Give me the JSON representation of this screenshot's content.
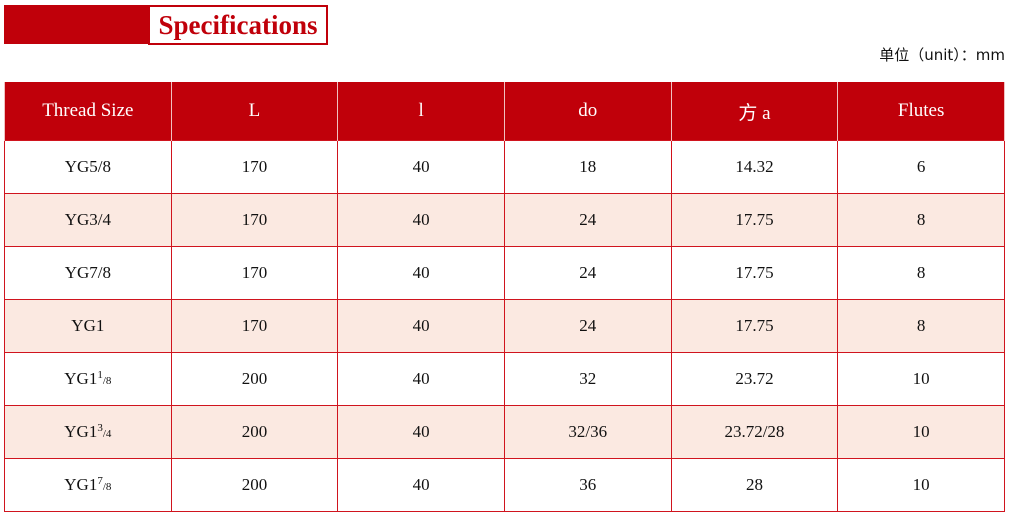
{
  "title": "Specifications",
  "unit": "单位（unit）：mm",
  "colors": {
    "accent": "#c0000a",
    "row_alt": "#fbe9e1"
  },
  "headers": [
    "Thread Size",
    "L",
    "l",
    "do",
    "方 a",
    "Flutes"
  ],
  "rows": [
    {
      "size": "YG5/8",
      "sup": "",
      "den": "",
      "L": "170",
      "l": "40",
      "do": "18",
      "a": "14.32",
      "flutes": "6"
    },
    {
      "size": "YG3/4",
      "sup": "",
      "den": "",
      "L": "170",
      "l": "40",
      "do": "24",
      "a": "17.75",
      "flutes": "8"
    },
    {
      "size": "YG7/8",
      "sup": "",
      "den": "",
      "L": "170",
      "l": "40",
      "do": "24",
      "a": "17.75",
      "flutes": "8"
    },
    {
      "size": "YG1",
      "sup": "",
      "den": "",
      "L": "170",
      "l": "40",
      "do": "24",
      "a": "17.75",
      "flutes": "8"
    },
    {
      "size": "YG1",
      "sup": "1",
      "den": "/8",
      "L": "200",
      "l": "40",
      "do": "32",
      "a": "23.72",
      "flutes": "10"
    },
    {
      "size": "YG1",
      "sup": "3",
      "den": "/4",
      "L": "200",
      "l": "40",
      "do": "32/36",
      "a": "23.72/28",
      "flutes": "10"
    },
    {
      "size": "YG1",
      "sup": "7",
      "den": "/8",
      "L": "200",
      "l": "40",
      "do": "36",
      "a": "28",
      "flutes": "10"
    }
  ]
}
